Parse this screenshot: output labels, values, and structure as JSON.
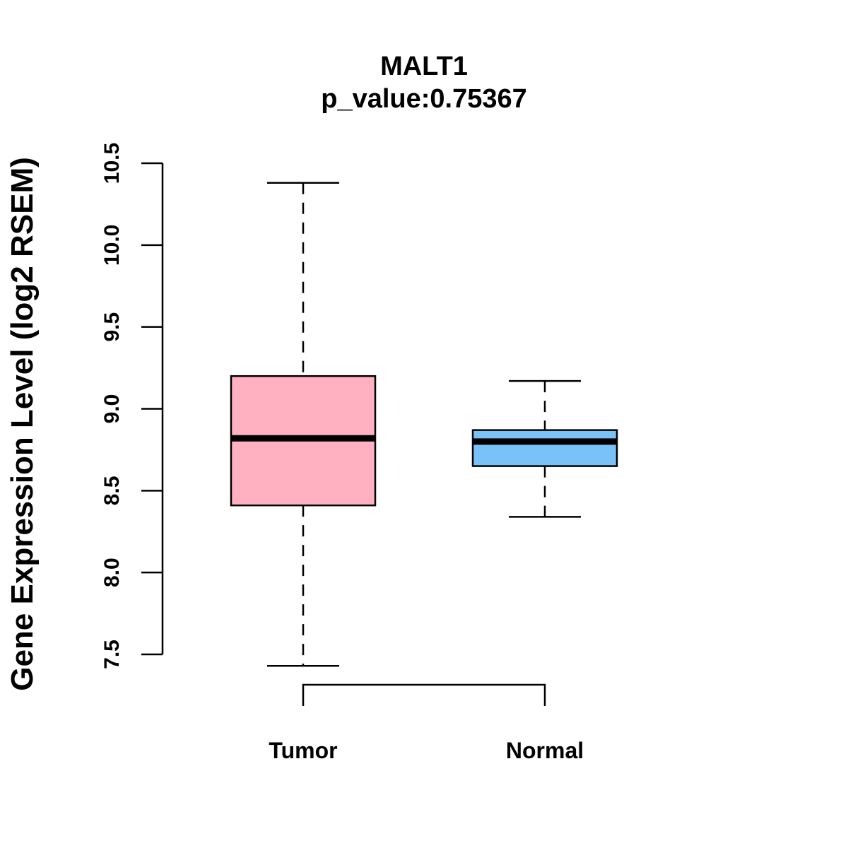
{
  "chart_data": {
    "type": "boxplot",
    "title": "MALT1",
    "subtitle": "p_value:0.75367",
    "ylabel": "Gene Expression Level (log2 RSEM)",
    "xlabel": "",
    "ylim": [
      7.5,
      10.5
    ],
    "yticks": [
      7.5,
      8.0,
      8.5,
      9.0,
      9.5,
      10.0,
      10.5
    ],
    "ytick_labels": [
      "7.5",
      "8.0",
      "8.5",
      "9.0",
      "9.5",
      "10.0",
      "10.5"
    ],
    "categories": [
      "Tumor",
      "Normal"
    ],
    "boxes": [
      {
        "name": "Tumor",
        "color": "#FFB1C1",
        "whisker_low": 7.43,
        "q1": 8.41,
        "median": 8.82,
        "q3": 9.2,
        "whisker_high": 10.38
      },
      {
        "name": "Normal",
        "color": "#78C2F8",
        "whisker_low": 8.34,
        "q1": 8.65,
        "median": 8.8,
        "q3": 8.87,
        "whisker_high": 9.17
      }
    ],
    "comparison_bracket": [
      "Tumor",
      "Normal"
    ],
    "grid": false,
    "legend": "none"
  }
}
